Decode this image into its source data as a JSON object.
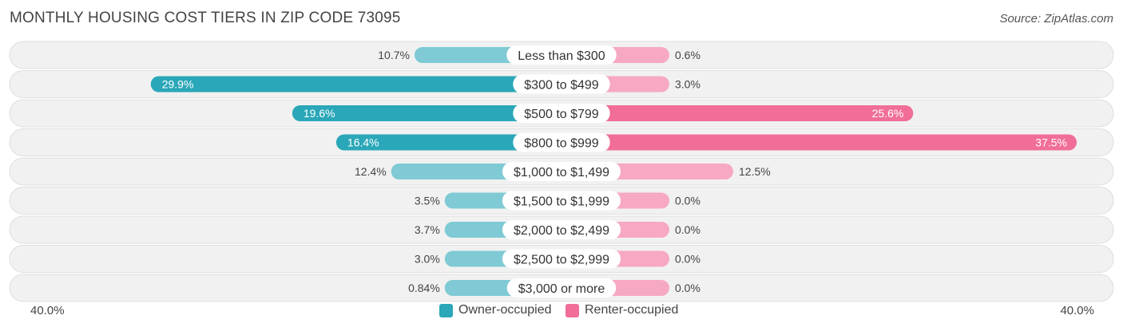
{
  "chart_data": {
    "type": "bar",
    "orientation": "horizontal-diverging",
    "title": "MONTHLY HOUSING COST TIERS IN ZIP CODE 73095",
    "source": "Source: ZipAtlas.com",
    "categories": [
      "Less than $300",
      "$300 to $499",
      "$500 to $799",
      "$800 to $999",
      "$1,000 to $1,499",
      "$1,500 to $1,999",
      "$2,000 to $2,499",
      "$2,500 to $2,999",
      "$3,000 or more"
    ],
    "series": [
      {
        "name": "Owner-occupied",
        "values": [
          10.7,
          29.9,
          19.6,
          16.4,
          12.4,
          3.5,
          3.7,
          3.0,
          0.84
        ],
        "labels": [
          "10.7%",
          "29.9%",
          "19.6%",
          "16.4%",
          "12.4%",
          "3.5%",
          "3.7%",
          "3.0%",
          "0.84%"
        ]
      },
      {
        "name": "Renter-occupied",
        "values": [
          0.6,
          3.0,
          25.6,
          37.5,
          12.5,
          0.0,
          0.0,
          0.0,
          0.0
        ],
        "labels": [
          "0.6%",
          "3.0%",
          "25.6%",
          "37.5%",
          "12.5%",
          "0.0%",
          "0.0%",
          "0.0%",
          "0.0%"
        ]
      }
    ],
    "xlim": [
      -40,
      40
    ],
    "axis_left_label": "40.0%",
    "axis_right_label": "40.0%",
    "legend_position": "bottom-center",
    "colors": {
      "owner_light": "#7fcad4",
      "owner_dark": "#2aa7b8",
      "renter_light": "#f7a8c3",
      "renter_dark": "#f06e98",
      "row_bg": "#f1f1f1",
      "row_border": "#dedede"
    }
  }
}
